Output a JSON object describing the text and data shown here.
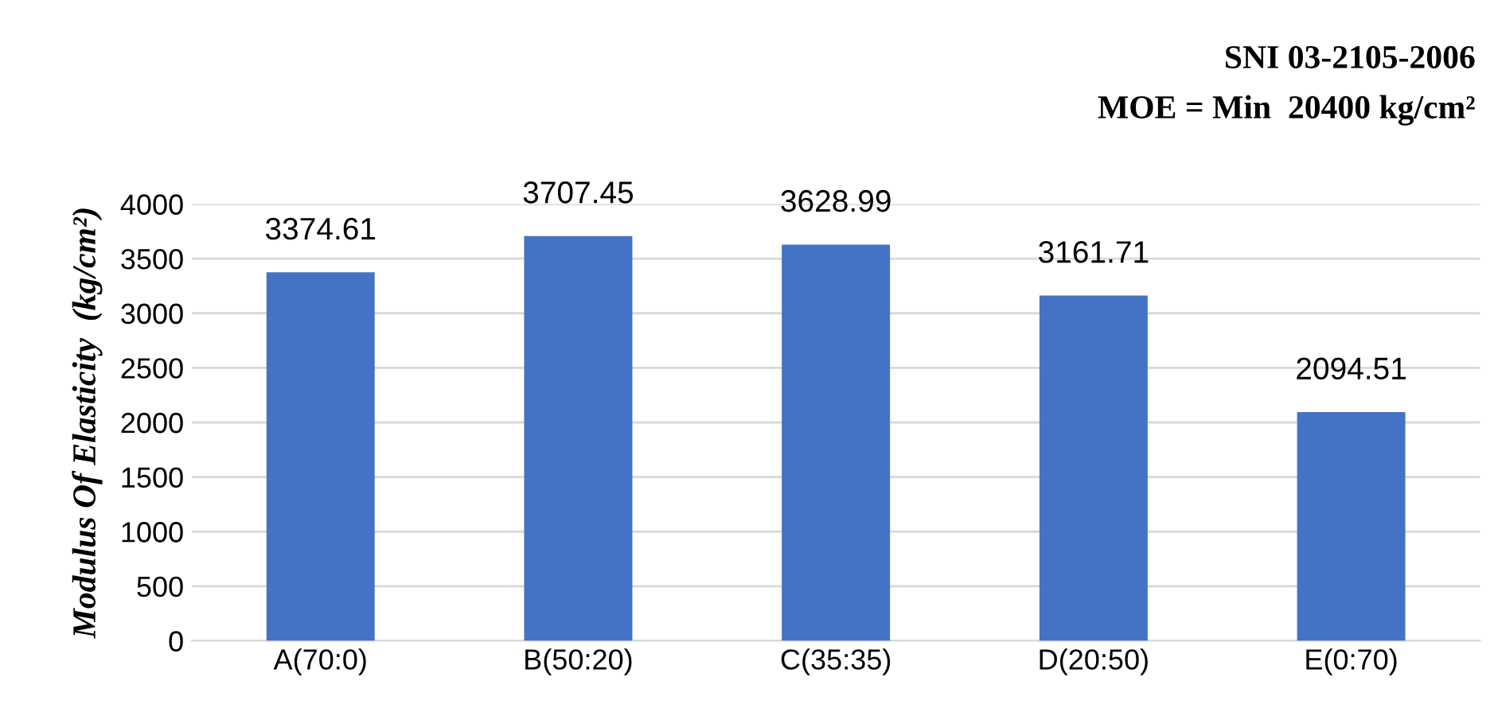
{
  "chart_data": {
    "type": "bar",
    "title": "SNI 03-2105-2006",
    "subtitle": "MOE = Min  20400 kg/cm²",
    "ylabel": "Modulus Of Elasticity  (kg/cm²)",
    "categories": [
      "A(70:0)",
      "B(50:20)",
      "C(35:35)",
      "D(20:50)",
      "E(0:70)"
    ],
    "values": [
      3374.61,
      3707.45,
      3628.99,
      3161.71,
      2094.51
    ],
    "color": "#4472c4",
    "ylim": [
      0,
      4000
    ],
    "yticks": [
      0,
      500,
      1000,
      1500,
      2000,
      2500,
      3000,
      3500,
      4000
    ],
    "grid": "y",
    "data_labels": true,
    "legend": false
  }
}
